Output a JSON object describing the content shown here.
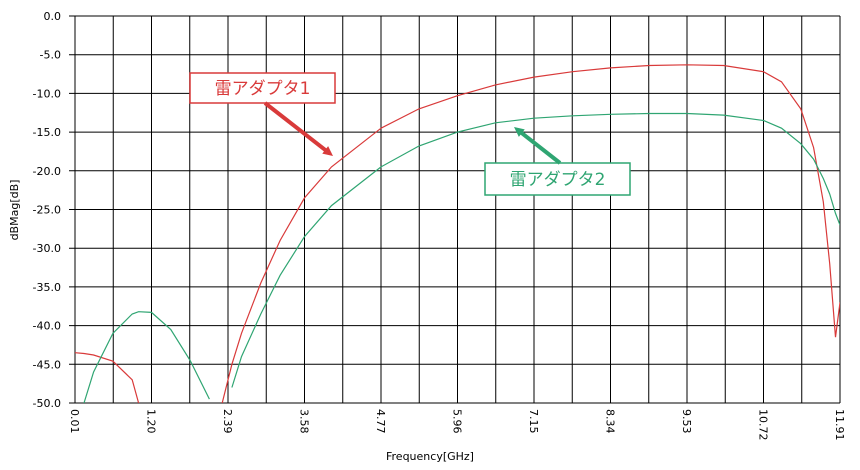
{
  "chart_data": {
    "type": "line",
    "x_label": "Frequency[GHz]",
    "y_label": "dBMag[dB]",
    "x": [
      0.01,
      0.15,
      0.3,
      0.6,
      0.9,
      1.0,
      1.2,
      1.5,
      1.8,
      2.1,
      2.2,
      2.3,
      2.45,
      2.6,
      2.9,
      3.2,
      3.58,
      4.0,
      4.77,
      5.36,
      5.96,
      6.55,
      7.15,
      7.75,
      8.34,
      8.94,
      9.53,
      10.1,
      10.72,
      11.0,
      11.3,
      11.5,
      11.65,
      11.75,
      11.84,
      11.91
    ],
    "series": [
      {
        "name": "雷アダプタ1",
        "color": "#d93a3a",
        "values": [
          -43.5,
          -43.6,
          -43.8,
          -44.6,
          -47.0,
          -50,
          null,
          null,
          null,
          null,
          null,
          -50,
          -45,
          -41,
          -34.5,
          -29,
          -23.5,
          -19.5,
          -14.5,
          -12,
          -10.3,
          -8.9,
          -7.9,
          -7.2,
          -6.7,
          -6.4,
          -6.3,
          -6.4,
          -7.2,
          -8.5,
          -12,
          -17,
          -24,
          -32,
          -41.5,
          -37
        ]
      },
      {
        "name": "雷アダプタ2",
        "color": "#2fa572",
        "values": [
          null,
          -50,
          -46,
          -41,
          -38.5,
          -38.2,
          -38.3,
          -40.5,
          -44.5,
          -49.5,
          null,
          null,
          -48,
          -44,
          -38.5,
          -33.5,
          -28.5,
          -24.5,
          -19.5,
          -16.8,
          -15,
          -13.8,
          -13.2,
          -12.9,
          -12.7,
          -12.6,
          -12.6,
          -12.8,
          -13.5,
          -14.5,
          -16.5,
          -18.5,
          -21,
          -23,
          -25.5,
          -27
        ]
      }
    ],
    "xlim": [
      0.01,
      11.91
    ],
    "ylim": [
      -50,
      0
    ],
    "xticks": [
      0.01,
      {
        "value": 1.2,
        "label": "1.20"
      },
      2.39,
      3.58,
      4.77,
      5.96,
      7.15,
      8.34,
      9.53,
      10.72,
      11.91
    ],
    "yticks": [
      {
        "value": 0,
        "label": "0.0"
      },
      {
        "value": -5,
        "label": "-5.0"
      },
      {
        "value": -10,
        "label": "-10.0"
      },
      {
        "value": -15,
        "label": "-15.0"
      },
      {
        "value": -20,
        "label": "-20.0"
      },
      {
        "value": -25,
        "label": "-25.0"
      },
      {
        "value": -30,
        "label": "-30.0"
      },
      {
        "value": -35,
        "label": "-35.0"
      },
      {
        "value": -40,
        "label": "-40.0"
      },
      {
        "value": -45,
        "label": "-45.0"
      },
      {
        "value": -50,
        "label": "-50.0"
      }
    ],
    "grid": true
  }
}
